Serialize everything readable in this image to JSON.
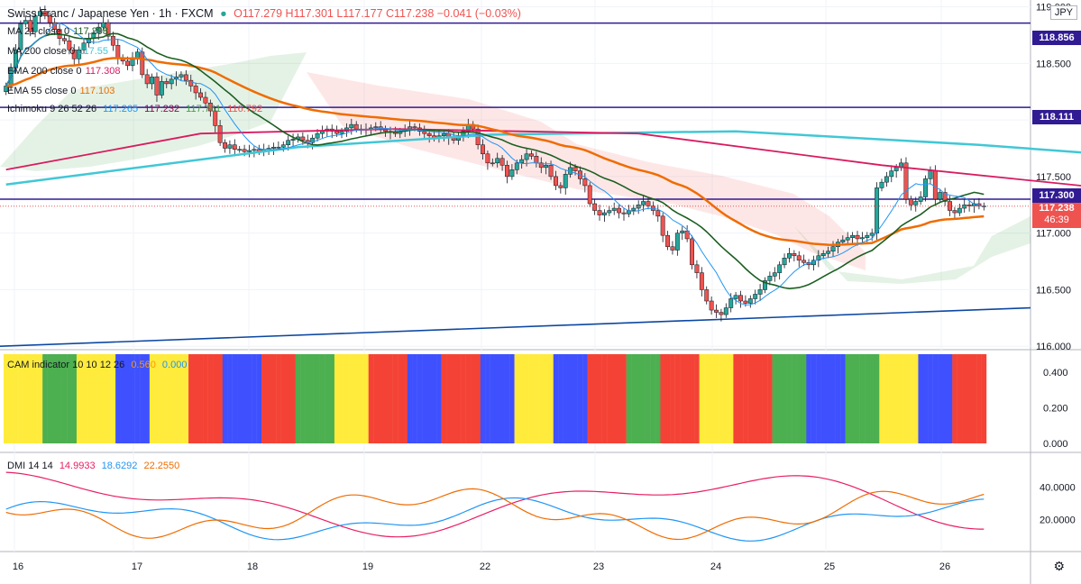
{
  "header": {
    "symbol": "Swiss Franc / Japanese Yen · 1h · FXCM",
    "ohlc": "O117.279 H117.301 L117.177 C117.238 −0.041 (−0.03%)",
    "currency": "JPY"
  },
  "legends": {
    "ma21": {
      "label": "MA 21 close 0",
      "value": "117.298",
      "color": "#1b5e20"
    },
    "ma200": {
      "label": "MA 200 close 0",
      "value": "117.55",
      "color": "#41c7d6"
    },
    "ema200": {
      "label": "EMA 200 close 0",
      "value": "117.308",
      "color": "#d81b60"
    },
    "ema55": {
      "label": "EMA 55 close 0",
      "value": "117.103",
      "color": "#ef6c00"
    },
    "ichimoku": {
      "label": "Ichimoku 9 26 52 26",
      "v1": "117.265",
      "v2": "117.232",
      "v3": "117.761",
      "v4": "116.792"
    },
    "cam": {
      "label": "CAM indicator 10 10 12 26",
      "v1": "0.560",
      "v2": "0.000"
    },
    "dmi": {
      "label": "DMI 14 14",
      "v1": "14.9933",
      "v2": "18.6292",
      "v3": "22.2550"
    }
  },
  "price_labels": {
    "level1": "118.856",
    "level2": "118.111",
    "level3": "117.300",
    "current": "117.238",
    "countdown": "46:39"
  },
  "y_ticks_main": [
    "119.000",
    "118.500",
    "118.000",
    "117.500",
    "117.000",
    "116.500",
    "116.000"
  ],
  "y_ticks_cam": [
    "0.400",
    "0.200",
    "0.000"
  ],
  "y_ticks_dmi": [
    "40.0000",
    "20.0000"
  ],
  "x_ticks": [
    "16",
    "17",
    "18",
    "19",
    "22",
    "23",
    "24",
    "25",
    "26"
  ],
  "chart_data": {
    "type": "candlestick",
    "y_range_main": [
      115.97,
      119.06
    ],
    "horizontal_levels": [
      {
        "value": 118.856,
        "color": "#311b92"
      },
      {
        "value": 118.111,
        "color": "#311b92"
      },
      {
        "value": 117.3,
        "color": "#311b92"
      }
    ],
    "trendline": {
      "from": [
        0,
        116.0
      ],
      "to": [
        272,
        116.34
      ],
      "color": "#0d47a1"
    },
    "closes": [
      118.3,
      118.46,
      118.62,
      118.85,
      118.88,
      118.78,
      118.92,
      118.96,
      118.92,
      118.86,
      118.8,
      118.72,
      118.7,
      118.62,
      118.54,
      118.62,
      118.68,
      118.72,
      118.77,
      118.82,
      118.86,
      118.74,
      118.66,
      118.55,
      118.52,
      118.48,
      118.55,
      118.6,
      118.4,
      118.32,
      118.38,
      118.22,
      118.34,
      118.32,
      118.36,
      118.38,
      118.4,
      118.35,
      118.3,
      118.24,
      118.2,
      118.15,
      118.08,
      117.95,
      117.8,
      117.75,
      117.78,
      117.74,
      117.74,
      117.72,
      117.73,
      117.74,
      117.72,
      117.74,
      117.75,
      117.76,
      117.76,
      117.78,
      117.82,
      117.83,
      117.85,
      117.82,
      117.8,
      117.84,
      117.88,
      117.9,
      117.92,
      117.9,
      117.88,
      117.9,
      117.93,
      117.96,
      117.92,
      117.91,
      117.92,
      117.93,
      117.94,
      117.92,
      117.9,
      117.89,
      117.88,
      117.9,
      117.92,
      117.94,
      117.93,
      117.9,
      117.88,
      117.86,
      117.84,
      117.86,
      117.88,
      117.84,
      117.82,
      117.86,
      117.9,
      117.96,
      117.92,
      117.78,
      117.7,
      117.62,
      117.62,
      117.66,
      117.6,
      117.5,
      117.56,
      117.62,
      117.65,
      117.7,
      117.68,
      117.62,
      117.58,
      117.6,
      117.5,
      117.42,
      117.4,
      117.52,
      117.58,
      117.55,
      117.48,
      117.42,
      117.26,
      117.2,
      117.16,
      117.18,
      117.2,
      117.22,
      117.18,
      117.17,
      117.2,
      117.22,
      117.25,
      117.28,
      117.24,
      117.2,
      117.15,
      116.98,
      116.88,
      116.85,
      117.0,
      117.02,
      116.95,
      116.72,
      116.65,
      116.5,
      116.4,
      116.32,
      116.3,
      116.28,
      116.34,
      116.42,
      116.45,
      116.4,
      116.38,
      116.42,
      116.46,
      116.5,
      116.58,
      116.62,
      116.65,
      116.72,
      116.78,
      116.82,
      116.8,
      116.76,
      116.74,
      116.72,
      116.76,
      116.8,
      116.82,
      116.84,
      116.88,
      116.92,
      116.94,
      116.96,
      116.98,
      116.95,
      116.96,
      116.98,
      117.0,
      117.4,
      117.45,
      117.5,
      117.55,
      117.58,
      117.62,
      117.3,
      117.25,
      117.28,
      117.32,
      117.48,
      117.55,
      117.3,
      117.36,
      117.28,
      117.2,
      117.18,
      117.22,
      117.25,
      117.24,
      117.26,
      117.24,
      117.24
    ],
    "ma200": {
      "start": 0,
      "values_by_bar": [
        [
          0,
          117.43
        ],
        [
          60,
          117.76
        ],
        [
          100,
          117.87
        ],
        [
          150,
          117.9
        ],
        [
          200,
          117.78
        ],
        [
          272,
          117.55
        ]
      ]
    },
    "ema200": {
      "values_by_bar": [
        [
          0,
          117.56
        ],
        [
          40,
          117.88
        ],
        [
          80,
          117.92
        ],
        [
          130,
          117.88
        ],
        [
          180,
          117.6
        ],
        [
          230,
          117.38
        ],
        [
          272,
          117.31
        ]
      ]
    },
    "cam_colors_sequence": [
      "yellow",
      "green",
      "yellow",
      "blue",
      "yellow",
      "red",
      "blue",
      "red",
      "green",
      "yellow",
      "red",
      "blue",
      "red",
      "blue",
      "yellow",
      "blue",
      "red",
      "green",
      "red",
      "yellow",
      "red",
      "green",
      "blue",
      "green",
      "yellow",
      "blue",
      "red"
    ],
    "dmi": {
      "series": [
        {
          "name": "ADX",
          "color": "#ef6c00"
        },
        {
          "name": "+DI",
          "color": "#2196f3"
        },
        {
          "name": "-DI",
          "color": "#e91e63"
        }
      ],
      "y_range": [
        0,
        60
      ]
    }
  }
}
